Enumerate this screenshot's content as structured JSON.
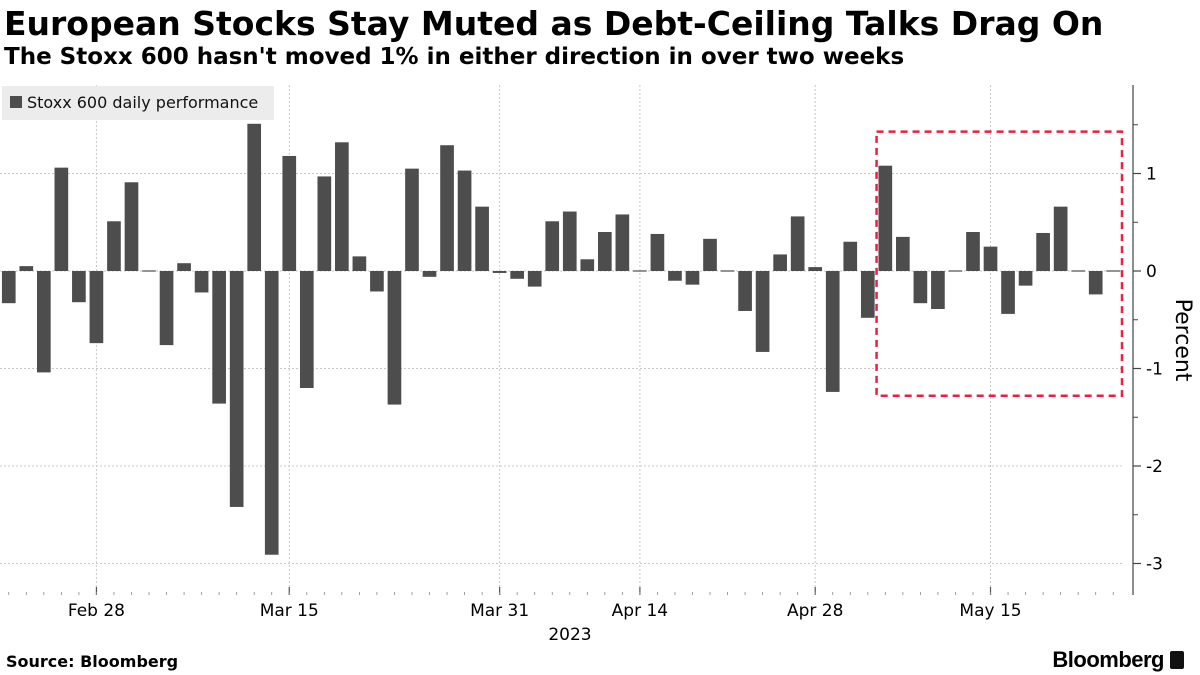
{
  "header": {
    "title": "European Stocks Stay Muted as Debt-Ceiling Talks Drag On",
    "subtitle": "The Stoxx 600 hasn't moved 1% in either direction in over two weeks"
  },
  "footer": {
    "source": "Source: Bloomberg",
    "brand": "Bloomberg"
  },
  "chart_data": {
    "type": "bar",
    "title": "European Stocks Stay Muted as Debt-Ceiling Talks Drag On",
    "subtitle": "The Stoxx 600 hasn't moved 1% in either direction in over two weeks",
    "ylabel": "Percent",
    "xlabel": "",
    "year_label": "2023",
    "ylim": [
      -3.35,
      1.95
    ],
    "yticks": [
      -3,
      -2,
      -1,
      0,
      1
    ],
    "grid": true,
    "legend": {
      "placement": "top-left",
      "entries": [
        "Stoxx 600 daily performance"
      ]
    },
    "bar_color": "#4d4d4d",
    "highlight_color": "#e8213f",
    "highlight_range": {
      "from": "May 5",
      "to": "May 24",
      "y": [
        -1.28,
        1.43
      ]
    },
    "xtick_labels": [
      "Feb 28",
      "Mar 15",
      "Mar 31",
      "Apr 14",
      "Apr 28",
      "May 15"
    ],
    "series": [
      {
        "name": "Stoxx 600 daily performance",
        "categories": [
          "Feb 21",
          "Feb 22",
          "Feb 23",
          "Feb 24",
          "Feb 27",
          "Feb 28",
          "Mar 1",
          "Mar 2",
          "Mar 3",
          "Mar 6",
          "Mar 7",
          "Mar 8",
          "Mar 9",
          "Mar 10",
          "Mar 13",
          "Mar 14",
          "Mar 15",
          "Mar 16",
          "Mar 17",
          "Mar 20",
          "Mar 21",
          "Mar 22",
          "Mar 23",
          "Mar 24",
          "Mar 27",
          "Mar 28",
          "Mar 29",
          "Mar 30",
          "Mar 31",
          "Apr 3",
          "Apr 4",
          "Apr 5",
          "Apr 6",
          "Apr 11",
          "Apr 12",
          "Apr 13",
          "Apr 14",
          "Apr 17",
          "Apr 18",
          "Apr 19",
          "Apr 20",
          "Apr 21",
          "Apr 24",
          "Apr 25",
          "Apr 26",
          "Apr 27",
          "Apr 28",
          "May 2",
          "May 3",
          "May 4",
          "May 5",
          "May 8",
          "May 9",
          "May 10",
          "May 11",
          "May 12",
          "May 15",
          "May 16",
          "May 17",
          "May 18",
          "May 19",
          "May 22",
          "May 23",
          "May 24"
        ],
        "values": [
          -0.33,
          0.05,
          -1.04,
          1.06,
          -0.32,
          -0.74,
          0.51,
          0.91,
          0.0,
          -0.76,
          0.08,
          -0.22,
          -1.36,
          -2.42,
          1.51,
          -2.91,
          1.18,
          -1.2,
          0.97,
          1.32,
          0.15,
          -0.21,
          -1.37,
          1.05,
          -0.06,
          1.29,
          1.03,
          0.66,
          -0.02,
          -0.08,
          -0.16,
          0.51,
          0.61,
          0.12,
          0.4,
          0.58,
          -0.01,
          0.38,
          -0.1,
          -0.14,
          0.33,
          0.0,
          -0.41,
          -0.83,
          0.17,
          0.56,
          0.04,
          -1.24,
          0.3,
          -0.48,
          1.08,
          0.35,
          -0.33,
          -0.39,
          0.0,
          0.4,
          0.25,
          -0.44,
          -0.15,
          0.39,
          0.66,
          0.01,
          -0.24,
          0.0
        ]
      }
    ]
  }
}
